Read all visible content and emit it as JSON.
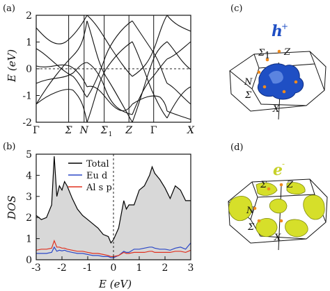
{
  "figure": {
    "panel_a_label": "(a)",
    "panel_b_label": "(b)",
    "panel_c_label": "(c)",
    "panel_d_label": "(d)",
    "hole_label": "h",
    "hole_sup": "+",
    "electron_label": "e",
    "electron_sup": "-",
    "bz_labels_c": {
      "sigma1": "Σ",
      "sigma1_sub": "1",
      "z": "Z",
      "n": "N",
      "sigma": "Σ",
      "x": "X"
    },
    "bz_labels_d": {
      "sigma1": "Σ",
      "z": "Z",
      "n": "N",
      "sigma": "Σ",
      "x": "X"
    },
    "colors": {
      "hole": "#1f4fc4",
      "electron": "#d6df2a",
      "fermi_dots": "#f08a1c",
      "total": "#000000",
      "eu_d": "#2b48c7",
      "al_sp": "#e0301f",
      "fill": "#d8d8d8"
    }
  },
  "chart_data": [
    {
      "type": "line",
      "title": "",
      "ylabel": "E (eV)",
      "ylim": [
        -2,
        2
      ],
      "yticks": [
        "-2",
        "-1",
        "0",
        "1",
        "2"
      ],
      "xticks": [
        "Γ",
        "Σ",
        "N",
        "Σ",
        "Z",
        "Γ",
        "X"
      ],
      "xtick_sub": [
        "",
        "",
        "",
        "1",
        "",
        "",
        ""
      ],
      "xtick_pos": [
        0,
        0.21,
        0.31,
        0.44,
        0.6,
        0.76,
        1.0
      ],
      "fermi_level": 0,
      "series": []
    },
    {
      "type": "area",
      "title": "",
      "xlabel": "E (eV)",
      "ylabel": "DOS",
      "xlim": [
        -3,
        3
      ],
      "ylim": [
        0,
        5
      ],
      "xticks": [
        "-3",
        "-2",
        "-1",
        "0",
        "1",
        "2",
        "3"
      ],
      "yticks": [
        "0",
        "1",
        "2",
        "3",
        "4",
        "5"
      ],
      "legend": "top-left",
      "x": [
        -3.0,
        -2.8,
        -2.6,
        -2.4,
        -2.3,
        -2.2,
        -2.1,
        -2.0,
        -1.9,
        -1.8,
        -1.6,
        -1.4,
        -1.2,
        -1.0,
        -0.8,
        -0.6,
        -0.4,
        -0.2,
        -0.1,
        0.0,
        0.2,
        0.4,
        0.5,
        0.6,
        0.8,
        1.0,
        1.2,
        1.4,
        1.5,
        1.6,
        1.8,
        2.0,
        2.2,
        2.4,
        2.6,
        2.8,
        3.0
      ],
      "series": [
        {
          "name": "Total",
          "values": [
            2.1,
            1.9,
            2.0,
            2.6,
            4.9,
            3.0,
            3.5,
            3.3,
            3.7,
            3.5,
            2.9,
            2.4,
            2.1,
            1.9,
            1.7,
            1.5,
            1.2,
            1.1,
            0.8,
            0.95,
            1.5,
            2.8,
            2.4,
            2.6,
            2.6,
            3.3,
            3.5,
            4.0,
            4.4,
            4.1,
            3.8,
            3.4,
            2.9,
            3.5,
            3.3,
            2.8,
            2.8
          ]
        },
        {
          "name": "Eu d",
          "values": [
            0.3,
            0.3,
            0.3,
            0.35,
            0.6,
            0.4,
            0.45,
            0.42,
            0.45,
            0.4,
            0.35,
            0.3,
            0.3,
            0.25,
            0.2,
            0.2,
            0.15,
            0.15,
            0.1,
            0.1,
            0.2,
            0.4,
            0.35,
            0.35,
            0.5,
            0.5,
            0.55,
            0.6,
            0.6,
            0.55,
            0.5,
            0.5,
            0.45,
            0.55,
            0.6,
            0.5,
            0.8
          ]
        },
        {
          "name": "Al s p",
          "values": [
            0.45,
            0.5,
            0.5,
            0.55,
            0.9,
            0.6,
            0.6,
            0.55,
            0.55,
            0.5,
            0.45,
            0.4,
            0.4,
            0.35,
            0.3,
            0.3,
            0.25,
            0.2,
            0.15,
            0.15,
            0.2,
            0.35,
            0.3,
            0.3,
            0.35,
            0.35,
            0.35,
            0.4,
            0.4,
            0.35,
            0.35,
            0.35,
            0.35,
            0.4,
            0.4,
            0.35,
            0.45
          ]
        }
      ]
    }
  ]
}
